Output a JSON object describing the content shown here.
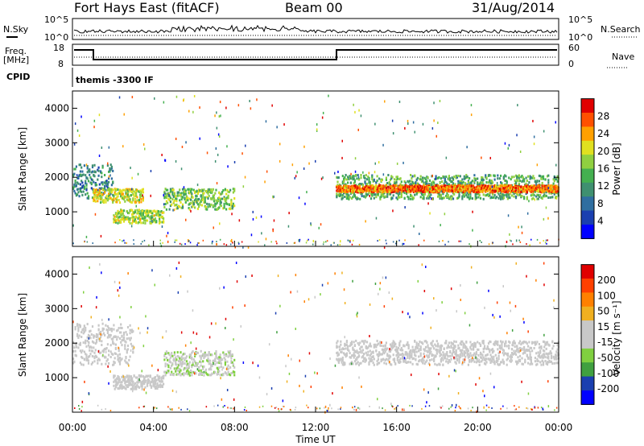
{
  "header": {
    "station": "Fort Hays East (fitACF)",
    "beam": "Beam 00",
    "date": "31/Aug/2014"
  },
  "strips": {
    "nsky_label": "N.Sky",
    "nsearch_label": "N.Search",
    "nsky_ticks": [
      "10^5",
      "10^0"
    ],
    "nsearch_ticks": [
      "10^5",
      "10^0"
    ],
    "freq_label": "Freq.",
    "freq_unit": "[MHz]",
    "freq_ticks": [
      "18",
      "8"
    ],
    "nave_label": "Nave",
    "nave_ticks": [
      "60",
      "0"
    ],
    "cpid_label": "CPID",
    "cpid_value": "themis -3300 IF"
  },
  "colors": {
    "power_scale": [
      "#0000ff",
      "#1a3fb0",
      "#2f6ea0",
      "#3f9070",
      "#44b050",
      "#90d040",
      "#e0e020",
      "#ffa000",
      "#ff5000",
      "#e00000"
    ],
    "velocity_scale": [
      "#0000ff",
      "#1a3fb0",
      "#40a040",
      "#80d040",
      "#c8c8c8",
      "#c8c8c8",
      "#f0b020",
      "#ff8000",
      "#ff4000",
      "#e00000"
    ]
  },
  "chart_data": [
    {
      "type": "heatmap",
      "panel": "power",
      "ylabel": "Slant Range [km]",
      "yticks": [
        "1000",
        "2000",
        "3000",
        "4000"
      ],
      "ylim": [
        0,
        4500
      ],
      "xlim": [
        "00:00",
        "24:00"
      ],
      "colorbar_label": "Power [dB]",
      "colorbar_ticks": [
        "4",
        "8",
        "12",
        "16",
        "20",
        "24",
        "28"
      ],
      "colorbar_range": [
        0,
        32
      ],
      "bands": [
        {
          "t0": 0.0,
          "t1": 2.0,
          "r0": 1400,
          "r1": 2400,
          "v": 10
        },
        {
          "t0": 1.0,
          "t1": 3.5,
          "r0": 1300,
          "r1": 1700,
          "v": 20
        },
        {
          "t0": 2.0,
          "t1": 4.5,
          "r0": 700,
          "r1": 1100,
          "v": 18
        },
        {
          "t0": 4.5,
          "t1": 8.0,
          "r0": 1100,
          "r1": 1700,
          "v": 16
        },
        {
          "t0": 13.0,
          "t1": 24.0,
          "r0": 1400,
          "r1": 2100,
          "v": 14
        },
        {
          "t0": 13.0,
          "t1": 24.0,
          "r0": 1600,
          "r1": 1800,
          "v": 26
        }
      ]
    },
    {
      "type": "heatmap",
      "panel": "velocity",
      "ylabel": "Slant Range [km]",
      "yticks": [
        "1000",
        "2000",
        "3000",
        "4000"
      ],
      "ylim": [
        0,
        4500
      ],
      "xlim": [
        "00:00",
        "24:00"
      ],
      "xticks": [
        "00:00",
        "04:00",
        "08:00",
        "12:00",
        "16:00",
        "20:00",
        "00:00"
      ],
      "xlabel": "Time UT",
      "colorbar_label": "Velocity [m s⁻¹]",
      "colorbar_ticks": [
        "200",
        "100",
        "50",
        "15",
        "-15",
        "-50",
        "-100",
        "-200"
      ],
      "colorbar_range": [
        -250,
        250
      ],
      "bands": [
        {
          "t0": 0.0,
          "t1": 3.0,
          "r0": 1400,
          "r1": 2600,
          "v": 0
        },
        {
          "t0": 2.0,
          "t1": 4.5,
          "r0": 700,
          "r1": 1100,
          "v": 0
        },
        {
          "t0": 4.5,
          "t1": 8.0,
          "r0": 1100,
          "r1": 1800,
          "v": 40
        },
        {
          "t0": 13.0,
          "t1": 24.0,
          "r0": 1400,
          "r1": 2100,
          "v": 0
        }
      ]
    }
  ]
}
